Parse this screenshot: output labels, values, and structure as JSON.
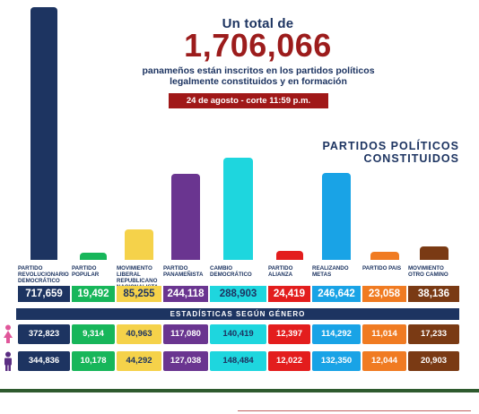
{
  "header": {
    "line1": "Un total de",
    "total": "1,706,066",
    "subtitle_line1": "panameños están inscritos en los partidos políticos",
    "subtitle_line2": "legalmente constituidos y en formación",
    "date": "24 de agosto - corte 11:59 p.m."
  },
  "section_title_line1": "PARTIDOS POLÍTICOS",
  "section_title_line2": "CONSTITUIDOS",
  "gender_header": "ESTADÍSTICAS SEGÚN GÉNERO",
  "icons": {
    "female": "female-icon",
    "male": "male-icon"
  },
  "chart_data": {
    "type": "bar",
    "categories": [
      "PARTIDO REVOLUCIONARIO DEMOCRÁTICO",
      "PARTIDO POPULAR",
      "MOVIMIENTO LIBERAL REPUBLICANO NACIONALISTA",
      "PARTIDO PANAMEÑISTA",
      "CAMBIO DEMOCRÁTICO",
      "PARTIDO ALIANZA",
      "REALIZANDO METAS",
      "PARTIDO PAIS",
      "MOVIMIENTO OTRO CAMINO"
    ],
    "values": [
      717659,
      19492,
      85255,
      244118,
      288903,
      24419,
      246642,
      23058,
      38136
    ],
    "value_labels": [
      "717,659",
      "19,492",
      "85,255",
      "244,118",
      "288,903",
      "24,419",
      "246,642",
      "23,058",
      "38,136"
    ],
    "colors": [
      "#1d3461",
      "#17b65a",
      "#f5d24a",
      "#6a3590",
      "#1ed6de",
      "#e31d1d",
      "#19a3e6",
      "#f07b22",
      "#7a3a14"
    ],
    "label_colors": [
      "#ffffff",
      "#ffffff",
      "#1d3461",
      "#ffffff",
      "#1d3461",
      "#ffffff",
      "#ffffff",
      "#ffffff",
      "#ffffff"
    ],
    "female": [
      "372,823",
      "9,314",
      "40,963",
      "117,080",
      "140,419",
      "12,397",
      "114,292",
      "11,014",
      "17,233"
    ],
    "male": [
      "344,836",
      "10,178",
      "44,292",
      "127,038",
      "148,484",
      "12,022",
      "132,350",
      "12,044",
      "20,903"
    ],
    "title": "",
    "xlabel": "",
    "ylabel": ""
  }
}
